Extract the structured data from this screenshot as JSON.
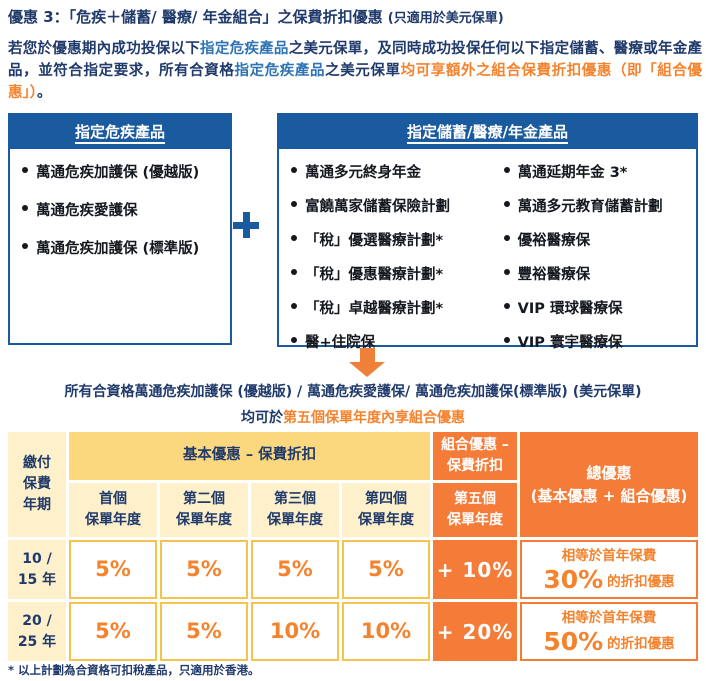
{
  "page": {
    "title_main": "優惠 3：「危疾＋儲蓄/ 醫療/ 年金組合」之保費折扣優惠 ",
    "title_note": "(只適用於美元保單)"
  },
  "intro": {
    "segments": [
      {
        "text": "若您於優惠期內成功投保以下",
        "color": "navy"
      },
      {
        "text": "指定危疾產品",
        "color": "blue"
      },
      {
        "text": "之美元保單，及同時成功投保任何以下指定儲蓄、醫療或年金產品，並符合指定要求，所有合資格",
        "color": "navy"
      },
      {
        "text": "指定危疾產品",
        "color": "blue"
      },
      {
        "text": "之美元保單",
        "color": "navy"
      },
      {
        "text": "均可享額外之組合保費折扣優惠（即「組合優惠」）",
        "color": "orange"
      },
      {
        "text": "。",
        "color": "navy"
      }
    ]
  },
  "boxes": {
    "left": {
      "title": "指定危疾產品",
      "items": [
        "萬通危疾加護保 (優越版)",
        "萬通危疾愛護保",
        "萬通危疾加護保 (標準版)"
      ]
    },
    "right": {
      "title": "指定儲蓄/醫療/年金產品",
      "col1": [
        "萬通多元終身年金",
        "富饒萬家儲蓄保險計劃",
        "「稅」優選醫療計劃*",
        "「稅」優惠醫療計劃*",
        "「稅」卓越醫療計劃*",
        "醫+住院保"
      ],
      "col2": [
        "萬通延期年金 3*",
        "萬通多元教育儲蓄計劃",
        "優裕醫療保",
        "豐裕醫療保",
        "VIP 環球醫療保",
        "VIP 寰宇醫療保"
      ]
    }
  },
  "summary": {
    "line1": "所有合資格萬通危疾加護保 (優越版) / 萬通危疾愛護保/ 萬通危疾加護保(標準版) (美元保單)",
    "line2_prefix": "均可於",
    "line2_highlight": "第五個保單年度內享組合優惠"
  },
  "table": {
    "payment_header": [
      "繳付",
      "保費",
      "年期"
    ],
    "basic_header": "基本優惠 – 保費折扣",
    "combo_header": [
      "組合優惠 –",
      "保費折扣"
    ],
    "total_header": [
      "總優惠",
      "(基本優惠 + 組合優惠)"
    ],
    "year_headers": [
      [
        "首個",
        "保單年度"
      ],
      [
        "第二個",
        "保單年度"
      ],
      [
        "第三個",
        "保單年度"
      ],
      [
        "第四個",
        "保單年度"
      ]
    ],
    "fifth_header": [
      "第五個",
      "保單年度"
    ],
    "rows": [
      {
        "term": [
          "10 /",
          "15 年"
        ],
        "basic": [
          "5%",
          "5%",
          "5%",
          "5%"
        ],
        "combo": "+ 10%",
        "total": {
          "prefix": "相等於首年保費",
          "pct": "30%",
          "suffix": "的折扣優惠"
        }
      },
      {
        "term": [
          "20 /",
          "25 年"
        ],
        "basic": [
          "5%",
          "5%",
          "10%",
          "10%"
        ],
        "combo": "+ 20%",
        "total": {
          "prefix": "相等於首年保費",
          "pct": "50%",
          "suffix": "的折扣優惠"
        }
      }
    ]
  },
  "footnote": "* 以上計劃為合資格可扣稅產品，只適用於香港。",
  "colors": {
    "navy_text": "#203A6B",
    "blue_highlight": "#2E74B5",
    "orange_highlight": "#F5822D",
    "box_header_blue": "#1A5A9E",
    "table_group_yellow": "#FBD77E",
    "table_cream": "#FDF0CB",
    "table_orange_fill": "#F57B38",
    "white_cell_border": "#F5C44F",
    "arrow_orange": "#F08038"
  }
}
